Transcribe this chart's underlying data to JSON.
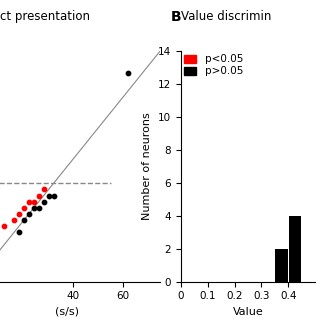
{
  "panel_B": {
    "xlabel": "Value",
    "ylabel": "Number of neurons",
    "ylim": [
      0,
      14
    ],
    "yticks": [
      0,
      2,
      4,
      6,
      8,
      10,
      12,
      14
    ],
    "xlim": [
      0,
      0.5
    ],
    "xticks": [
      0,
      0.1,
      0.2,
      0.3,
      0.4
    ],
    "bin_edges": [
      0.0,
      0.05,
      0.1,
      0.15,
      0.2,
      0.25,
      0.3,
      0.35,
      0.4,
      0.45,
      0.5
    ],
    "black_counts": [
      0,
      0,
      0,
      0,
      0,
      0,
      0,
      2,
      4,
      0
    ],
    "red_counts": [
      0,
      0,
      0,
      0,
      0,
      0,
      0,
      0,
      0,
      0
    ],
    "bar_width": 0.05,
    "black_color": "#000000",
    "red_color": "#ff0000",
    "legend_red_label": "p<0.05",
    "legend_black_label": "p>0.05",
    "background_color": "#ffffff",
    "label_fontsize": 8,
    "tick_fontsize": 7.5
  },
  "panel_A": {
    "title": "ct presentation",
    "xlabel": "(s/s)",
    "scatter_black_x": [
      18,
      20,
      22,
      24,
      26,
      28,
      30,
      32,
      62
    ],
    "scatter_black_y": [
      16,
      20,
      22,
      24,
      24,
      26,
      28,
      28,
      68
    ],
    "scatter_red_x": [
      12,
      16,
      18,
      20,
      22,
      24,
      26,
      28
    ],
    "scatter_red_y": [
      18,
      20,
      22,
      24,
      26,
      26,
      28,
      30
    ],
    "unity_line": [
      0,
      75
    ],
    "hline_y": 32,
    "hline_xmin": 0,
    "hline_xmax": 55,
    "xlim": [
      0,
      75
    ],
    "ylim": [
      0,
      75
    ],
    "xtick_positions": [
      40,
      60
    ],
    "xtick_labels": [
      "40",
      "60"
    ],
    "black_color": "#000000",
    "red_color": "#ff0000",
    "gray_color": "#888888",
    "tick_fontsize": 7.5,
    "label_fontsize": 8
  }
}
